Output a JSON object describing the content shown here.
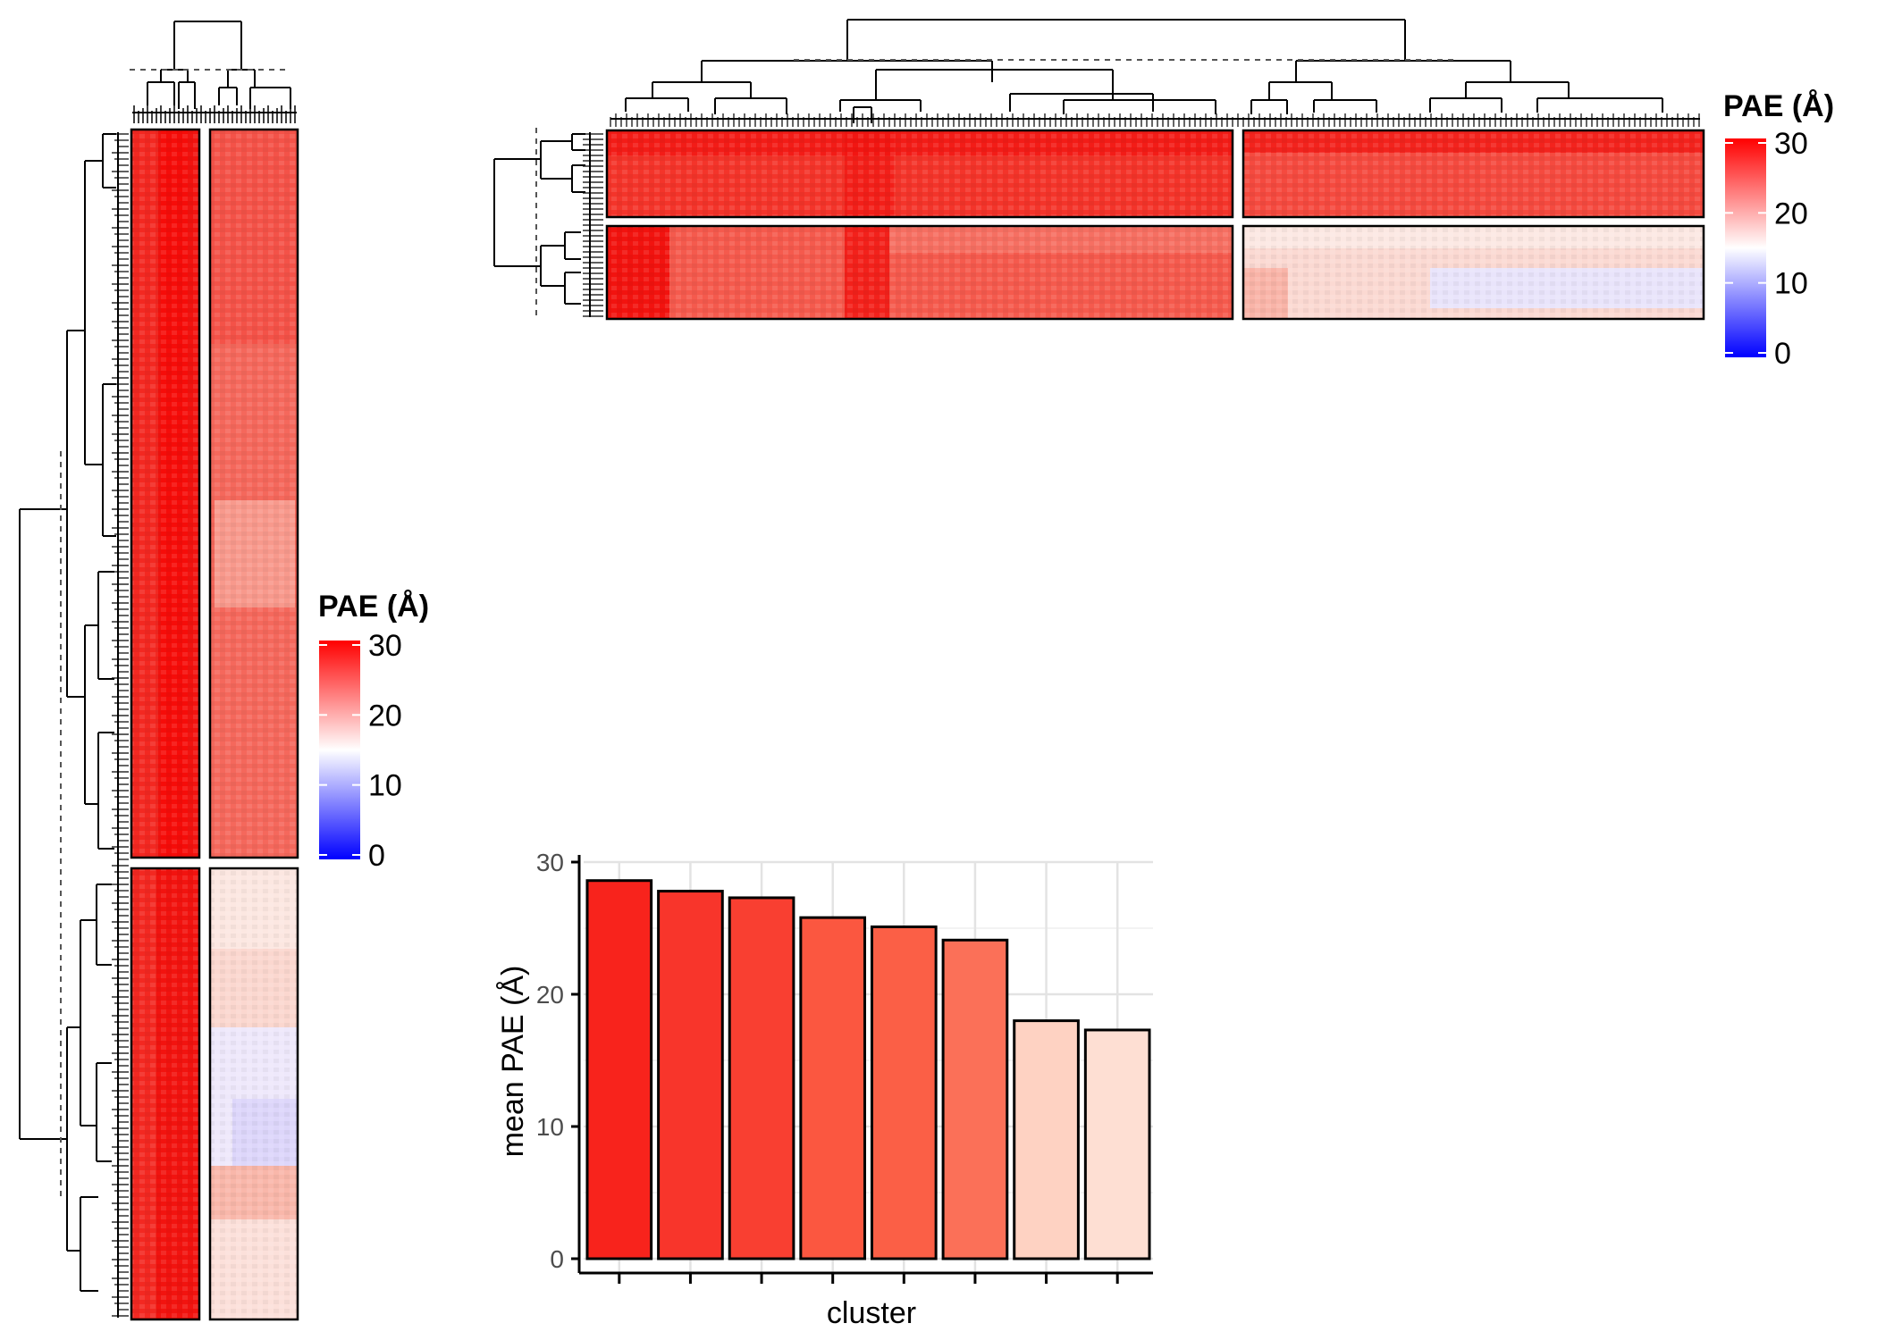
{
  "legend_left": {
    "title": "PAE (Å)",
    "ticks": [
      "30",
      "20",
      "10",
      "0"
    ],
    "tick_values": [
      30,
      20,
      10,
      0
    ],
    "colors": {
      "high": "#ff0000",
      "mid": "#ffffff",
      "low": "#0000ff"
    }
  },
  "legend_top": {
    "title": "PAE (Å)",
    "ticks": [
      "30",
      "20",
      "10",
      "0"
    ],
    "tick_values": [
      30,
      20,
      10,
      0
    ],
    "colors": {
      "high": "#ff0000",
      "mid": "#ffffff",
      "low": "#0000ff"
    }
  },
  "heatmap_colors": {
    "strong": "#f2130f",
    "red": "#f23a30",
    "pale": "#fbd7cf",
    "lighter": "#fde8e4",
    "lilac": "#e9e4fb"
  },
  "chart_data": {
    "type": "bar",
    "categories": [
      "",
      "",
      "",
      "",
      "",
      "",
      "",
      ""
    ],
    "values": [
      28.6,
      27.8,
      27.3,
      25.8,
      25.1,
      24.1,
      18.0,
      17.3
    ],
    "bar_colors": [
      "#f8231c",
      "#f8352b",
      "#f93f31",
      "#fb5740",
      "#fb5f46",
      "#fb7058",
      "#fed2c2",
      "#fedfd3"
    ],
    "yticks": [
      0,
      10,
      20,
      30
    ],
    "ylim": [
      0,
      30
    ],
    "xlabel": "cluster",
    "ylabel": "mean PAE (Å)",
    "grid": true
  }
}
